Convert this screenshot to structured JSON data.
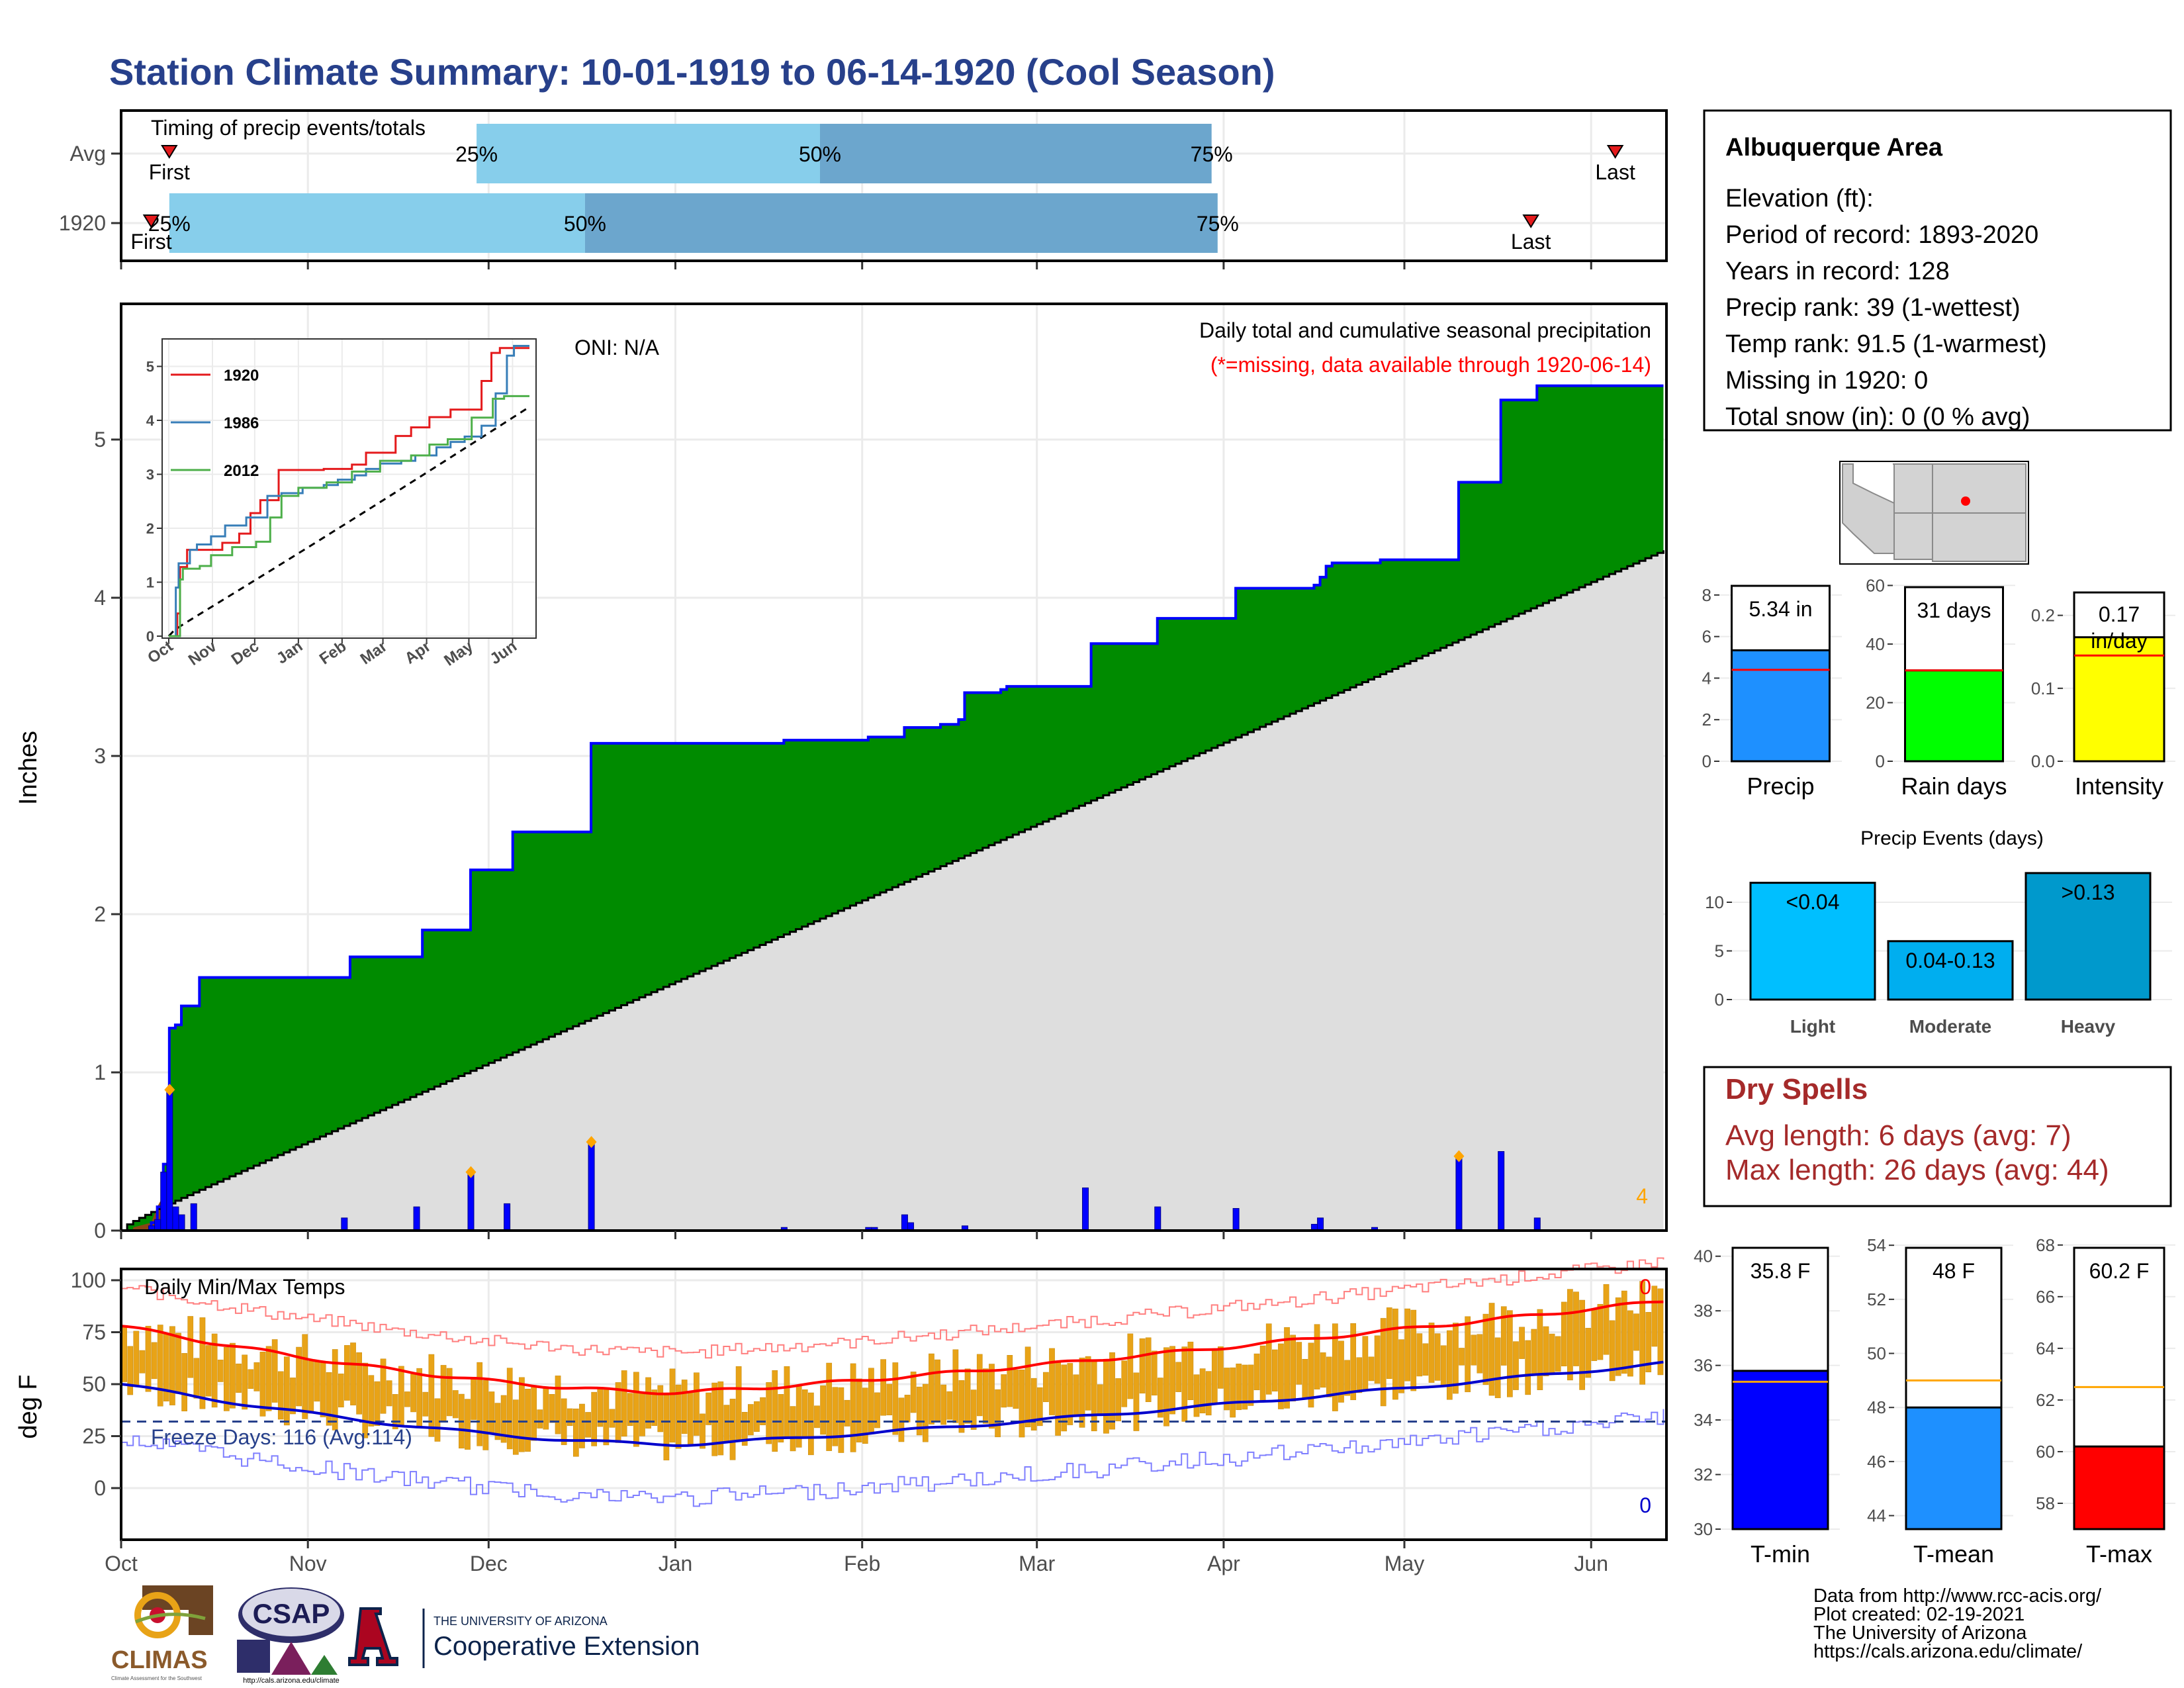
{
  "title": "Station Climate Summary: 10-01-1919 to 06-14-1920 (Cool Season)",
  "months": [
    "Oct",
    "Nov",
    "Dec",
    "Jan",
    "Feb",
    "Mar",
    "Apr",
    "May",
    "Jun"
  ],
  "month_days": [
    0,
    31,
    61,
    92,
    123,
    152,
    183,
    213,
    244
  ],
  "timing": {
    "title": "Timing of precip events/totals",
    "rows": [
      {
        "label": "Avg",
        "first_day": 8,
        "last_day": 248,
        "p25": 59,
        "p50": 116,
        "p75": 181,
        "first_label": "First",
        "last_label": "Last",
        "p25_label": "25%",
        "p50_label": "50%",
        "p75_label": "75%"
      },
      {
        "label": "1920",
        "first_day": 5,
        "last_day": 234,
        "p25": 8,
        "p50": 77,
        "p75": 182,
        "first_label": "First",
        "last_label": "Last",
        "p25_label": "25%",
        "p50_label": "50%",
        "p75_label": "75%"
      }
    ]
  },
  "precip": {
    "ylabel": "Inches",
    "yticks": [
      0,
      1,
      2,
      3,
      4,
      5
    ],
    "caption": "Daily total and cumulative seasonal precipitation",
    "missing_note": "(*=missing, data available through 1920-06-14)",
    "oni": "ONI: N/A",
    "corner_value": "4",
    "avg_end": 4.3,
    "cum_steps": [
      [
        0,
        0
      ],
      [
        5,
        0.05
      ],
      [
        6,
        0.15
      ],
      [
        7,
        0.42
      ],
      [
        8,
        1.28
      ],
      [
        9,
        1.3
      ],
      [
        10,
        1.42
      ],
      [
        12,
        1.42
      ],
      [
        13,
        1.6
      ],
      [
        37,
        1.6
      ],
      [
        38,
        1.73
      ],
      [
        49,
        1.73
      ],
      [
        50,
        1.9
      ],
      [
        57,
        1.9
      ],
      [
        58,
        2.28
      ],
      [
        64,
        2.28
      ],
      [
        65,
        2.52
      ],
      [
        77,
        2.52
      ],
      [
        78,
        3.08
      ],
      [
        110,
        3.1
      ],
      [
        124,
        3.12
      ],
      [
        130,
        3.18
      ],
      [
        136,
        3.2
      ],
      [
        139,
        3.23
      ],
      [
        140,
        3.4
      ],
      [
        146,
        3.42
      ],
      [
        147,
        3.44
      ],
      [
        160,
        3.44
      ],
      [
        161,
        3.71
      ],
      [
        171,
        3.71
      ],
      [
        172,
        3.87
      ],
      [
        184,
        3.87
      ],
      [
        185,
        4.06
      ],
      [
        198,
        4.08
      ],
      [
        199,
        4.13
      ],
      [
        200,
        4.2
      ],
      [
        201,
        4.22
      ],
      [
        208,
        4.22
      ],
      [
        209,
        4.24
      ],
      [
        221,
        4.24
      ],
      [
        222,
        4.73
      ],
      [
        228,
        4.73
      ],
      [
        229,
        5.25
      ],
      [
        234,
        5.25
      ],
      [
        235,
        5.34
      ],
      [
        256,
        5.34
      ]
    ],
    "daily": [
      [
        5,
        0.03
      ],
      [
        6,
        0.07
      ],
      [
        7,
        0.37
      ],
      [
        8,
        0.89
      ],
      [
        9,
        0.15
      ],
      [
        10,
        0.1
      ],
      [
        12,
        0.17
      ],
      [
        37,
        0.08
      ],
      [
        49,
        0.15
      ],
      [
        58,
        0.37
      ],
      [
        64,
        0.17
      ],
      [
        78,
        0.56
      ],
      [
        110,
        0.02
      ],
      [
        124,
        0.02
      ],
      [
        125,
        0.02
      ],
      [
        130,
        0.1
      ],
      [
        131,
        0.05
      ],
      [
        140,
        0.03
      ],
      [
        160,
        0.27
      ],
      [
        172,
        0.15
      ],
      [
        185,
        0.14
      ],
      [
        198,
        0.04
      ],
      [
        199,
        0.08
      ],
      [
        208,
        0.02
      ],
      [
        222,
        0.47
      ],
      [
        229,
        0.5
      ],
      [
        235,
        0.08
      ]
    ],
    "diamonds": [
      [
        8,
        0.89
      ],
      [
        58,
        0.37
      ],
      [
        78,
        0.56
      ],
      [
        222,
        0.47
      ]
    ]
  },
  "inset": {
    "yticks": [
      0,
      1,
      2,
      3,
      4,
      5
    ],
    "series": [
      {
        "name": "1920",
        "color": "#E41A1C",
        "steps": [
          [
            0,
            0
          ],
          [
            6,
            0.42
          ],
          [
            8,
            1.28
          ],
          [
            13,
            1.6
          ],
          [
            38,
            1.73
          ],
          [
            50,
            1.9
          ],
          [
            58,
            2.28
          ],
          [
            65,
            2.52
          ],
          [
            78,
            3.08
          ],
          [
            110,
            3.1
          ],
          [
            130,
            3.18
          ],
          [
            140,
            3.4
          ],
          [
            161,
            3.71
          ],
          [
            172,
            3.87
          ],
          [
            185,
            4.06
          ],
          [
            200,
            4.2
          ],
          [
            222,
            4.73
          ],
          [
            229,
            5.25
          ],
          [
            235,
            5.34
          ],
          [
            256,
            5.34
          ]
        ]
      },
      {
        "name": "1986",
        "color": "#377EB8",
        "steps": [
          [
            0,
            0
          ],
          [
            5,
            0.9
          ],
          [
            7,
            1.35
          ],
          [
            15,
            1.6
          ],
          [
            20,
            1.7
          ],
          [
            30,
            1.85
          ],
          [
            40,
            2.05
          ],
          [
            55,
            2.2
          ],
          [
            70,
            2.6
          ],
          [
            80,
            2.65
          ],
          [
            95,
            2.75
          ],
          [
            110,
            2.8
          ],
          [
            120,
            2.9
          ],
          [
            132,
            2.98
          ],
          [
            140,
            3.1
          ],
          [
            150,
            3.2
          ],
          [
            165,
            3.25
          ],
          [
            175,
            3.35
          ],
          [
            190,
            3.5
          ],
          [
            200,
            3.6
          ],
          [
            210,
            3.7
          ],
          [
            222,
            3.9
          ],
          [
            232,
            4.5
          ],
          [
            240,
            5.2
          ],
          [
            245,
            5.38
          ],
          [
            256,
            5.38
          ]
        ]
      },
      {
        "name": "2012",
        "color": "#4DAF4A",
        "steps": [
          [
            0,
            0
          ],
          [
            8,
            1.05
          ],
          [
            10,
            1.25
          ],
          [
            22,
            1.3
          ],
          [
            30,
            1.5
          ],
          [
            45,
            1.65
          ],
          [
            62,
            1.75
          ],
          [
            72,
            2.2
          ],
          [
            80,
            2.6
          ],
          [
            92,
            2.75
          ],
          [
            112,
            2.85
          ],
          [
            130,
            3.05
          ],
          [
            150,
            3.25
          ],
          [
            172,
            3.35
          ],
          [
            185,
            3.55
          ],
          [
            198,
            3.65
          ],
          [
            215,
            4.05
          ],
          [
            230,
            4.4
          ],
          [
            238,
            4.45
          ],
          [
            256,
            4.45
          ]
        ]
      }
    ],
    "avg_end": 4.25
  },
  "temps": {
    "ylabel": "deg F",
    "yticks": [
      0,
      25,
      50,
      75,
      100
    ],
    "title": "Daily Min/Max Temps",
    "freeze_label": "Freeze Days: 116 (Avg:114)",
    "freeze_line": 32,
    "record_high_count": "0",
    "record_low_count": "0",
    "avg_max_start": 78,
    "avg_max_low": 46,
    "avg_max_end": 90,
    "avg_min_start": 50,
    "avg_min_low": 21,
    "avg_min_end": 60
  },
  "info": {
    "title": "Albuquerque Area",
    "lines": [
      "Elevation (ft):",
      "Period of record: 1893-2020",
      "Years in record: 128",
      "Precip rank: 39 (1-wettest)",
      "Temp rank: 91.5 (1-warmest)",
      "Missing in 1920: 0",
      "Total snow (in): 0 (0 % avg)"
    ]
  },
  "mini_bars": [
    {
      "label": "Precip",
      "value_label": "5.34 in",
      "value": 5.34,
      "avg": 4.4,
      "ymin": 0,
      "ymax": 8.6,
      "ticks": [
        0,
        2,
        4,
        6,
        8
      ],
      "color": "#1E90FF"
    },
    {
      "label": "Rain days",
      "value_label": "31 days",
      "value": 31,
      "avg": 31,
      "ymin": 0,
      "ymax": 61,
      "ticks": [
        0,
        20,
        40,
        60
      ],
      "color": "#00FF00"
    },
    {
      "label": "Intensity",
      "value_label": "0.17 in/day",
      "value": 0.17,
      "avg": 0.145,
      "ymin": 0,
      "ymax": 0.245,
      "ticks": [
        "0.0",
        "0.1",
        "0.2"
      ],
      "color": "#FFFF00"
    }
  ],
  "events": {
    "title": "Precip Events (days)",
    "ticks": [
      0,
      5,
      10
    ],
    "bars": [
      {
        "label": "Light",
        "range": "<0.04",
        "value": 12,
        "color": "#00BFFF"
      },
      {
        "label": "Moderate",
        "range": "0.04-0.13",
        "value": 6,
        "color": "#00AEEF"
      },
      {
        "label": "Heavy",
        "range": ">0.13",
        "value": 13,
        "color": "#0099CC"
      }
    ]
  },
  "dry_spells": {
    "title": "Dry Spells",
    "lines": [
      "Avg length: 6 days (avg: 7)",
      "Max length: 26 days (avg: 44)"
    ]
  },
  "temp_bars": [
    {
      "label": "T-min",
      "value_label": "35.8 F",
      "value": 35.8,
      "avg": 35.4,
      "ymin": 30,
      "ymax": 40.6,
      "ticks": [
        30,
        32,
        34,
        36,
        38,
        40
      ],
      "color": "#0000FF"
    },
    {
      "label": "T-mean",
      "value_label": "48 F",
      "value": 48,
      "avg": 49,
      "ymin": 43.5,
      "ymax": 54.2,
      "ticks": [
        44,
        46,
        48,
        50,
        52,
        54
      ],
      "color": "#1E90FF"
    },
    {
      "label": "T-max",
      "value_label": "60.2 F",
      "value": 60.2,
      "avg": 62.5,
      "ymin": 57,
      "ymax": 68.2,
      "ticks": [
        58,
        60,
        62,
        64,
        66,
        68
      ],
      "color": "#FF0000"
    }
  ],
  "credits": [
    "Data from http://www.rcc-acis.org/",
    "Plot created: 02-19-2021",
    "The University of Arizona",
    "https://cals.arizona.edu/climate/"
  ],
  "logos": {
    "climas": "CLIMAS",
    "climas_sub": "Climate Assessment for the Southwest",
    "csap": "CSAP",
    "csap_url": "http://cals.arizona.edu/climate",
    "ua_top": "THE UNIVERSITY OF ARIZONA",
    "ua_bottom": "Cooperative Extension"
  },
  "colors": {
    "title": "#27408B",
    "green": "#008B00",
    "grey": "#DEDEDE",
    "blue": "#0000FF",
    "orange": "#FFA500",
    "red": "#FF0000",
    "dry": "#A52A2A",
    "bar_orange": "#E8A317"
  }
}
